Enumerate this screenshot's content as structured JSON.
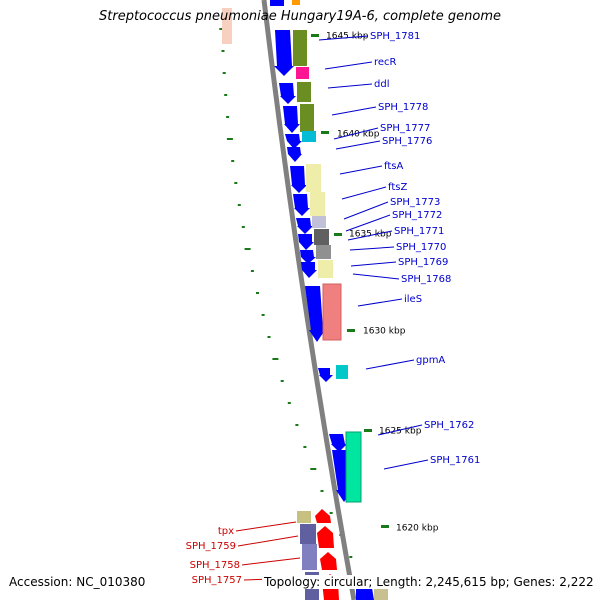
{
  "title": "Streptococcus pneumoniae Hungary19A-6, complete genome",
  "accession": "Accession: NC_010380",
  "topology": "Topology: circular; Length: 2,245,615 bp; Genes: 2,222",
  "colors": {
    "backbone": "#808080",
    "forward_arrow": "#0000ff",
    "reverse_arrow": "#ff0000",
    "tick": "#1a7a1a",
    "label_forward": "#0000cc",
    "label_reverse": "#cc0000"
  },
  "position_labels": [
    "1645 kbp",
    "1640 kbp",
    "1635 kbp",
    "1630 kbp",
    "1625 kbp",
    "1620 kbp"
  ],
  "forward_genes": [
    "SPH_1781",
    "recR",
    "ddl",
    "SPH_1778",
    "SPH_1777",
    "SPH_1776",
    "ftsA",
    "ftsZ",
    "SPH_1773",
    "SPH_1772",
    "SPH_1771",
    "SPH_1770",
    "SPH_1769",
    "SPH_1768",
    "ileS",
    "gpmA",
    "SPH_1762",
    "SPH_1761"
  ],
  "reverse_genes": [
    "tpx",
    "SPH_1759",
    "SPH_1758",
    "SPH_1757"
  ]
}
